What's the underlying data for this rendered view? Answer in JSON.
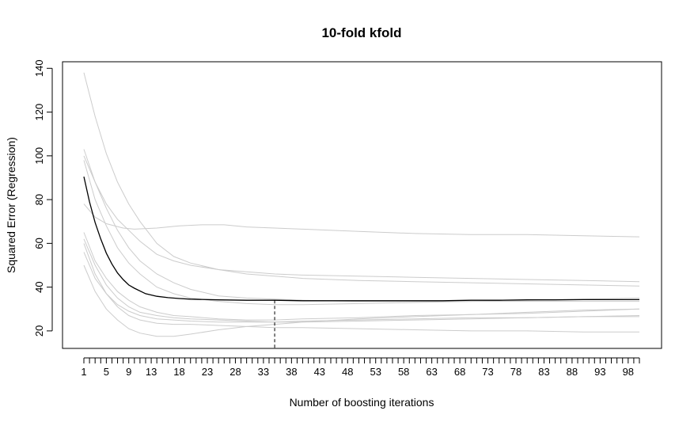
{
  "chart_data": {
    "type": "line",
    "title": "10-fold kfold",
    "xlabel": "Number of boosting iterations",
    "ylabel": "Squared Error (Regression)",
    "xlim": [
      1,
      100
    ],
    "ylim": [
      12,
      143
    ],
    "x_tick_labels": [
      1,
      5,
      9,
      13,
      18,
      23,
      28,
      33,
      38,
      43,
      48,
      53,
      58,
      63,
      68,
      73,
      78,
      83,
      88,
      93,
      98
    ],
    "y_ticks": [
      20,
      40,
      60,
      80,
      100,
      120,
      140
    ],
    "optimal_iteration": 35,
    "colors": {
      "mean": "#000000",
      "fold": "#cccccc",
      "optimal_line": "#000000",
      "axis": "#000000"
    },
    "mean_curve": {
      "x": [
        1,
        2,
        3,
        4,
        5,
        6,
        7,
        8,
        9,
        10,
        12,
        14,
        16,
        18,
        20,
        25,
        30,
        35,
        40,
        45,
        50,
        55,
        60,
        65,
        70,
        75,
        80,
        85,
        90,
        95,
        100
      ],
      "y": [
        90.5,
        79,
        69.5,
        62,
        55.5,
        50.5,
        46.5,
        43.5,
        41,
        39.5,
        37,
        35.8,
        35.2,
        34.8,
        34.5,
        34.2,
        34,
        34,
        33.8,
        33.8,
        33.8,
        33.8,
        33.8,
        33.8,
        34,
        34,
        34.2,
        34.2,
        34.3,
        34.3,
        34.3
      ]
    },
    "series": [
      {
        "x": [
          1,
          3,
          5,
          7,
          9,
          11,
          14,
          17,
          20,
          25,
          30,
          35,
          40,
          50,
          60,
          70,
          80,
          90,
          100
        ],
        "y": [
          138,
          118,
          101,
          88,
          78,
          70,
          60,
          54,
          51,
          48,
          46,
          45,
          44,
          43,
          42.5,
          42,
          41.5,
          41,
          40.5
        ]
      },
      {
        "x": [
          1,
          3,
          5,
          7,
          9,
          11,
          14,
          17,
          20,
          25,
          30,
          35,
          40,
          50,
          60,
          70,
          80,
          90,
          100
        ],
        "y": [
          103,
          88,
          76,
          66,
          58,
          52,
          46,
          42,
          39,
          36,
          35,
          34.5,
          34,
          33.5,
          33.5,
          33.5,
          33.5,
          33.5,
          33.5
        ]
      },
      {
        "x": [
          1,
          3,
          5,
          7,
          9,
          11,
          14,
          17,
          20,
          25,
          30,
          35,
          40,
          50,
          60,
          70,
          80,
          90,
          100
        ],
        "y": [
          98,
          80,
          68,
          58,
          51,
          46,
          40,
          37,
          35,
          33.5,
          32.5,
          32,
          32,
          32.5,
          33,
          33.5,
          34,
          34.5,
          35
        ]
      },
      {
        "x": [
          1,
          3,
          5,
          7,
          9,
          11,
          14,
          17,
          20,
          25,
          30,
          35,
          40,
          50,
          60,
          70,
          80,
          90,
          100
        ],
        "y": [
          100,
          88,
          78,
          71,
          66,
          61,
          55,
          52,
          50,
          48,
          47,
          46,
          45.5,
          45,
          44.5,
          44,
          43.5,
          43,
          42.5
        ]
      },
      {
        "x": [
          1,
          3,
          5,
          8,
          10,
          14,
          18,
          22,
          26,
          30,
          35,
          40,
          50,
          60,
          70,
          80,
          90,
          100
        ],
        "y": [
          78,
          72,
          69,
          67,
          66.5,
          67,
          68,
          68.5,
          68.5,
          67.5,
          67,
          66.5,
          65.5,
          64.5,
          64,
          64,
          63.5,
          63
        ]
      },
      {
        "x": [
          1,
          3,
          5,
          7,
          9,
          11,
          14,
          17,
          20,
          25,
          30,
          35,
          40,
          50,
          60,
          70,
          80,
          90,
          100
        ],
        "y": [
          65,
          52,
          44,
          38,
          34,
          31,
          28.5,
          27,
          26.5,
          25.5,
          25,
          25,
          25.5,
          26,
          27,
          27.5,
          28,
          29,
          30
        ]
      },
      {
        "x": [
          1,
          3,
          5,
          7,
          9,
          11,
          14,
          17,
          20,
          25,
          30,
          35,
          40,
          50,
          60,
          70,
          80,
          90,
          100
        ],
        "y": [
          62,
          50,
          41,
          35,
          31,
          28.5,
          27,
          26,
          25.5,
          25,
          24.5,
          24,
          24,
          24.5,
          25,
          25.5,
          26,
          26.5,
          27
        ]
      },
      {
        "x": [
          1,
          3,
          5,
          7,
          9,
          11,
          14,
          17,
          20,
          25,
          30,
          35,
          40,
          50,
          60,
          70,
          80,
          90,
          100
        ],
        "y": [
          60,
          46,
          37,
          31,
          27,
          25,
          23.5,
          23,
          23,
          22.5,
          22,
          21.5,
          21.5,
          21,
          20.5,
          20,
          20,
          19.5,
          19.5
        ]
      },
      {
        "x": [
          1,
          3,
          5,
          7,
          9,
          11,
          14,
          17,
          20,
          25,
          30,
          35,
          40,
          50,
          60,
          70,
          80,
          90,
          100
        ],
        "y": [
          50,
          38,
          30,
          25,
          21,
          19,
          17.5,
          17.5,
          18.5,
          20.5,
          22,
          23,
          24,
          25.5,
          26.5,
          27.5,
          28.5,
          29.5,
          30
        ]
      },
      {
        "x": [
          1,
          3,
          5,
          7,
          9,
          11,
          14,
          17,
          20,
          25,
          30,
          35,
          40,
          50,
          60,
          70,
          80,
          90,
          100
        ],
        "y": [
          56,
          44,
          37,
          32,
          29,
          27,
          25.5,
          25,
          24.5,
          24,
          24,
          24,
          24.5,
          25,
          25.5,
          26,
          26,
          26.5,
          26.5
        ]
      }
    ]
  }
}
